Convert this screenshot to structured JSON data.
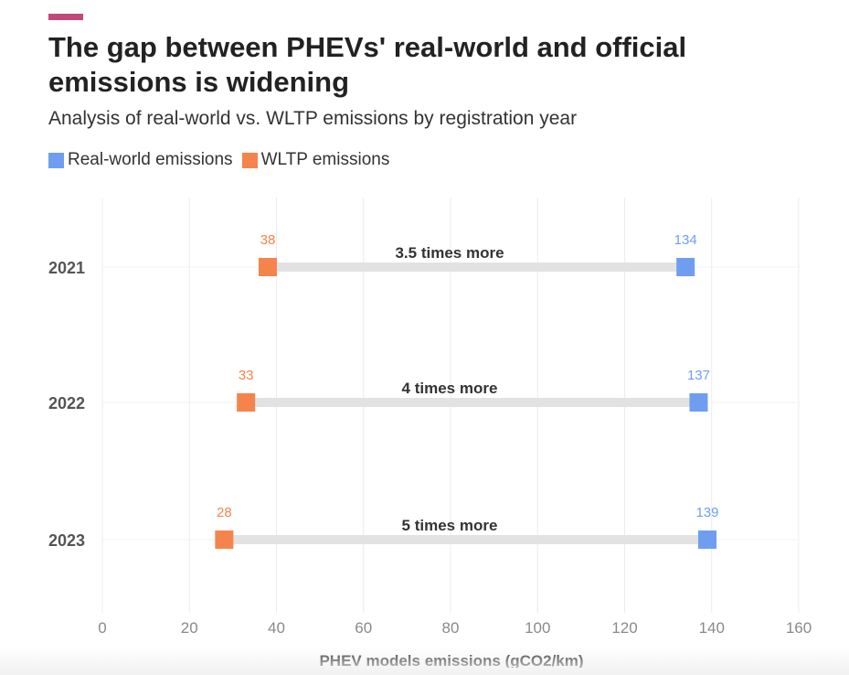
{
  "header": {
    "title": "The gap between PHEVs' real-world and official emissions is widening",
    "subtitle": "Analysis of real-world vs. WLTP emissions by registration year"
  },
  "colors": {
    "accent": "#c2477a",
    "real_world": "#6f9ef0",
    "wltp": "#f5844c",
    "connector": "#e2e2e2",
    "grid": "#ececec"
  },
  "chart_data": {
    "type": "dumbbell",
    "title": "The gap between PHEVs' real-world and official emissions is widening",
    "subtitle": "Analysis of real-world vs. WLTP emissions by registration year",
    "xlabel": "PHEV models emissions (gCO2/km)",
    "ylabel": "",
    "xlim": [
      0,
      160
    ],
    "xticks": [
      0,
      20,
      40,
      60,
      80,
      100,
      120,
      140,
      160
    ],
    "categories": [
      "2021",
      "2022",
      "2023"
    ],
    "series": [
      {
        "name": "Real-world emissions",
        "color": "#6f9ef0",
        "values": [
          134,
          137,
          139
        ]
      },
      {
        "name": "WLTP emissions",
        "color": "#f5844c",
        "values": [
          38,
          33,
          28
        ]
      }
    ],
    "annotations": [
      "3.5 times more",
      "4 times more",
      "5 times more"
    ],
    "grid": "vertical",
    "legend": "top-left"
  }
}
